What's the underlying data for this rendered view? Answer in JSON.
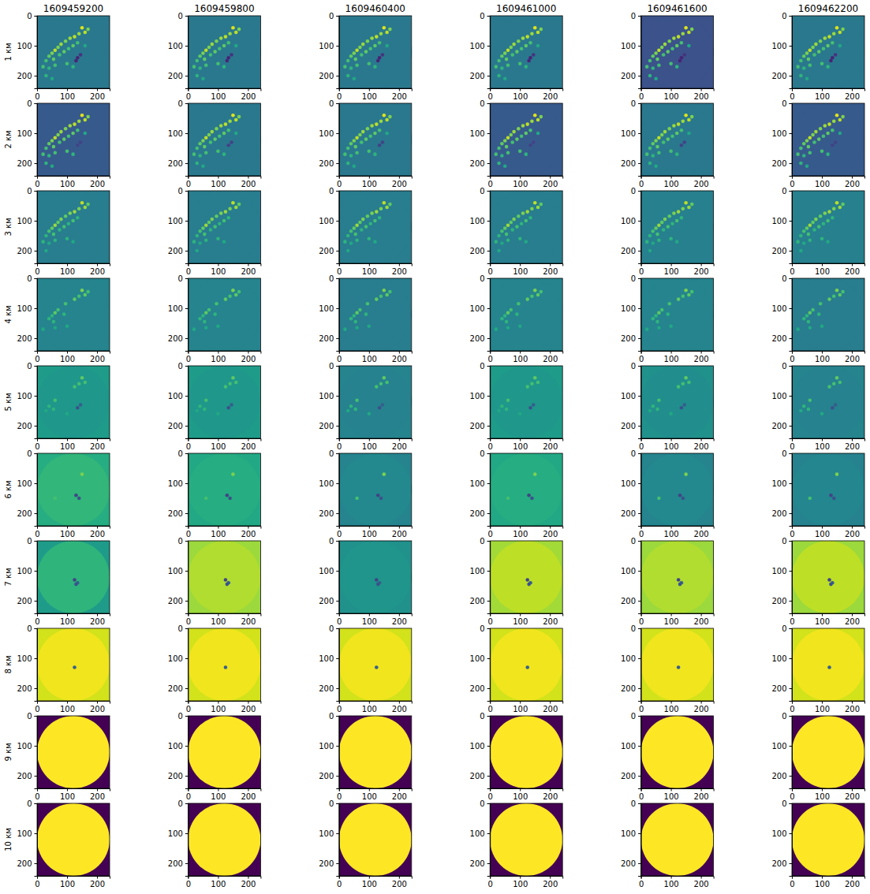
{
  "chart_data": {
    "type": "heatmap_grid",
    "columns": [
      "1609459200",
      "1609459800",
      "1609460400",
      "1609461000",
      "1609461600",
      "1609462200"
    ],
    "rows": [
      "1 км",
      "2 км",
      "3 км",
      "4 км",
      "5 км",
      "6 км",
      "7 км",
      "8 км",
      "9 км",
      "10 км"
    ],
    "xlim": [
      0,
      242
    ],
    "ylim": [
      242,
      0
    ],
    "xticks": [
      0,
      100,
      200
    ],
    "yticks": [
      0,
      100,
      200
    ],
    "color_range": [
      0,
      1
    ],
    "disk_center": [
      121,
      121
    ],
    "disk_radius": 121,
    "background": [
      [
        0.4,
        0.4,
        0.4,
        0.4,
        0.25,
        0.4
      ],
      [
        0.28,
        0.4,
        0.4,
        0.28,
        0.4,
        0.28
      ],
      [
        0.42,
        0.42,
        0.42,
        0.42,
        0.43,
        0.43
      ],
      [
        0.45,
        0.45,
        0.42,
        0.45,
        0.45,
        0.42
      ],
      [
        0.55,
        0.55,
        0.45,
        0.55,
        0.5,
        0.45
      ],
      [
        0.62,
        0.6,
        0.45,
        0.6,
        0.45,
        0.44
      ],
      [
        0.55,
        0.85,
        0.5,
        0.86,
        0.85,
        0.85
      ],
      [
        0.93,
        0.93,
        0.93,
        0.93,
        0.93,
        0.93
      ],
      [
        0,
        0,
        0,
        0,
        0,
        0
      ],
      [
        0,
        0,
        0,
        0,
        0,
        0
      ]
    ],
    "disk": [
      [
        0.4,
        0.4,
        0.4,
        0.4,
        0.25,
        0.4
      ],
      [
        0.28,
        0.4,
        0.4,
        0.28,
        0.4,
        0.28
      ],
      [
        0.42,
        0.42,
        0.42,
        0.42,
        0.43,
        0.43
      ],
      [
        0.45,
        0.45,
        0.42,
        0.45,
        0.45,
        0.42
      ],
      [
        0.53,
        0.53,
        0.44,
        0.53,
        0.49,
        0.44
      ],
      [
        0.66,
        0.62,
        0.47,
        0.62,
        0.47,
        0.46
      ],
      [
        0.65,
        0.88,
        0.52,
        0.9,
        0.88,
        0.9
      ],
      [
        0.98,
        0.98,
        0.98,
        0.98,
        0.98,
        0.98
      ],
      [
        1,
        1,
        1,
        1,
        1,
        1
      ],
      [
        1,
        1,
        1,
        1,
        1,
        1
      ]
    ],
    "echoes": [
      [
        [
          150,
          40,
          0.95
        ],
        [
          160,
          55,
          0.9
        ],
        [
          140,
          60,
          0.85
        ],
        [
          125,
          70,
          0.9
        ],
        [
          110,
          75,
          0.85
        ],
        [
          95,
          85,
          0.8
        ],
        [
          80,
          95,
          0.85
        ],
        [
          70,
          105,
          0.8
        ],
        [
          60,
          115,
          0.9
        ],
        [
          50,
          125,
          0.8
        ],
        [
          40,
          135,
          0.75
        ],
        [
          30,
          150,
          0.7
        ],
        [
          55,
          145,
          0.75
        ],
        [
          75,
          130,
          0.7
        ],
        [
          90,
          120,
          0.75
        ],
        [
          105,
          110,
          0.7
        ],
        [
          120,
          100,
          0.75
        ],
        [
          135,
          90,
          0.7
        ],
        [
          20,
          170,
          0.7
        ],
        [
          40,
          175,
          0.65
        ],
        [
          60,
          165,
          0.7
        ],
        [
          100,
          160,
          0.7
        ],
        [
          120,
          170,
          0.65
        ],
        [
          170,
          45,
          0.8
        ],
        [
          160,
          100,
          0.6
        ],
        [
          30,
          200,
          0.65
        ],
        [
          50,
          210,
          0.6
        ],
        [
          135,
          140,
          0.1
        ],
        [
          145,
          130,
          0.15
        ],
        [
          130,
          150,
          0.1
        ]
      ],
      [
        [
          150,
          40,
          0.95
        ],
        [
          160,
          55,
          0.9
        ],
        [
          140,
          60,
          0.85
        ],
        [
          125,
          70,
          0.9
        ],
        [
          110,
          75,
          0.85
        ],
        [
          95,
          85,
          0.8
        ],
        [
          80,
          95,
          0.85
        ],
        [
          70,
          105,
          0.8
        ],
        [
          60,
          115,
          0.9
        ],
        [
          50,
          125,
          0.8
        ],
        [
          40,
          135,
          0.75
        ],
        [
          30,
          150,
          0.7
        ],
        [
          55,
          145,
          0.75
        ],
        [
          75,
          130,
          0.7
        ],
        [
          90,
          120,
          0.75
        ],
        [
          105,
          110,
          0.7
        ],
        [
          120,
          100,
          0.75
        ],
        [
          135,
          90,
          0.7
        ],
        [
          20,
          170,
          0.7
        ],
        [
          40,
          175,
          0.65
        ],
        [
          60,
          165,
          0.7
        ],
        [
          100,
          160,
          0.7
        ],
        [
          120,
          170,
          0.65
        ],
        [
          170,
          45,
          0.8
        ],
        [
          160,
          100,
          0.6
        ],
        [
          30,
          200,
          0.65
        ],
        [
          50,
          210,
          0.6
        ],
        [
          135,
          140,
          0.2
        ],
        [
          145,
          130,
          0.2
        ]
      ],
      [
        [
          150,
          40,
          0.9
        ],
        [
          160,
          55,
          0.85
        ],
        [
          140,
          60,
          0.8
        ],
        [
          125,
          70,
          0.85
        ],
        [
          110,
          75,
          0.8
        ],
        [
          95,
          85,
          0.75
        ],
        [
          80,
          95,
          0.8
        ],
        [
          70,
          105,
          0.75
        ],
        [
          60,
          115,
          0.85
        ],
        [
          50,
          125,
          0.75
        ],
        [
          40,
          135,
          0.7
        ],
        [
          30,
          150,
          0.65
        ],
        [
          55,
          145,
          0.7
        ],
        [
          75,
          130,
          0.65
        ],
        [
          90,
          120,
          0.7
        ],
        [
          105,
          110,
          0.65
        ],
        [
          120,
          100,
          0.7
        ],
        [
          135,
          90,
          0.65
        ],
        [
          20,
          170,
          0.65
        ],
        [
          40,
          175,
          0.6
        ],
        [
          60,
          165,
          0.65
        ],
        [
          100,
          160,
          0.65
        ],
        [
          120,
          170,
          0.6
        ],
        [
          170,
          45,
          0.75
        ],
        [
          30,
          200,
          0.6
        ]
      ],
      [
        [
          150,
          40,
          0.8
        ],
        [
          160,
          55,
          0.75
        ],
        [
          140,
          60,
          0.7
        ],
        [
          125,
          70,
          0.75
        ],
        [
          95,
          85,
          0.7
        ],
        [
          70,
          105,
          0.7
        ],
        [
          60,
          115,
          0.75
        ],
        [
          50,
          125,
          0.65
        ],
        [
          40,
          135,
          0.65
        ],
        [
          55,
          145,
          0.65
        ],
        [
          90,
          120,
          0.65
        ],
        [
          20,
          170,
          0.6
        ],
        [
          60,
          165,
          0.6
        ],
        [
          100,
          160,
          0.6
        ],
        [
          170,
          45,
          0.7
        ]
      ],
      [
        [
          150,
          40,
          0.75
        ],
        [
          160,
          55,
          0.7
        ],
        [
          140,
          60,
          0.7
        ],
        [
          125,
          70,
          0.7
        ],
        [
          60,
          115,
          0.7
        ],
        [
          40,
          135,
          0.65
        ],
        [
          30,
          150,
          0.6
        ],
        [
          55,
          145,
          0.65
        ],
        [
          100,
          160,
          0.6
        ],
        [
          135,
          140,
          0.25
        ],
        [
          145,
          130,
          0.3
        ]
      ],
      [
        [
          150,
          70,
          0.8
        ],
        [
          130,
          140,
          0.2
        ],
        [
          140,
          150,
          0.25
        ],
        [
          60,
          150,
          0.7
        ]
      ],
      [
        [
          125,
          130,
          0.2
        ],
        [
          135,
          140,
          0.3
        ],
        [
          130,
          145,
          0.25
        ]
      ],
      [
        [
          125,
          130,
          0.3
        ]
      ],
      [],
      []
    ]
  }
}
